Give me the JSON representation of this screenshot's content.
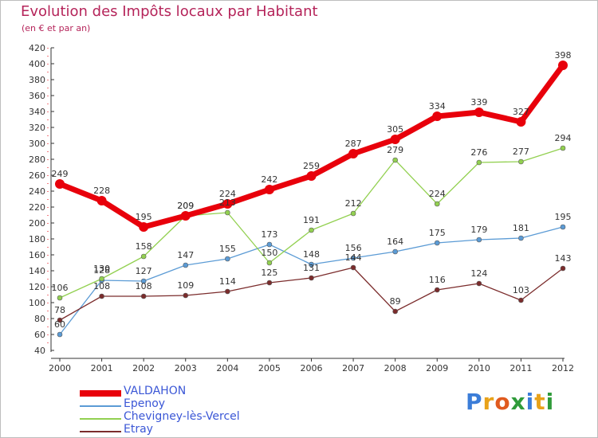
{
  "title": "Evolution des Impôts locaux par Habitant",
  "subtitle": "(en € et par an)",
  "brand": {
    "text": "Proxiti",
    "letter_colors": [
      "#3b7dd8",
      "#e8a21a",
      "#e05a1e",
      "#2f9b3a",
      "#3b7dd8",
      "#e8a21a",
      "#2f9b3a"
    ]
  },
  "chart_data": {
    "type": "line",
    "title": "Evolution des Impôts locaux par Habitant",
    "subtitle": "(en € et par an)",
    "x": [
      "2000",
      "2001",
      "2002",
      "2003",
      "2004",
      "2005",
      "2006",
      "2007",
      "2008",
      "2009",
      "2010",
      "2011",
      "2012"
    ],
    "y_ticks": [
      40,
      60,
      80,
      100,
      120,
      140,
      160,
      180,
      200,
      220,
      240,
      260,
      280,
      300,
      320,
      340,
      360,
      380,
      400,
      420
    ],
    "ylim": [
      40,
      420
    ],
    "grid": false,
    "legend_position": "bottom-left",
    "series": [
      {
        "name": "VALDAHON",
        "color": "#e8000b",
        "values": [
          249,
          228,
          195,
          209,
          224,
          242,
          259,
          287,
          305,
          334,
          339,
          327,
          398
        ]
      },
      {
        "name": "Epenoy",
        "color": "#5b9bd5",
        "values": [
          60,
          128,
          127,
          147,
          155,
          173,
          148,
          156,
          164,
          175,
          179,
          181,
          195
        ]
      },
      {
        "name": "Chevigney-lès-Vercel",
        "color": "#92d050",
        "values": [
          106,
          130,
          158,
          209,
          213,
          150,
          191,
          212,
          279,
          224,
          276,
          277,
          294
        ]
      },
      {
        "name": "Etray",
        "color": "#7b2c2c",
        "values": [
          78,
          108,
          108,
          109,
          114,
          125,
          131,
          144,
          89,
          116,
          124,
          103,
          143
        ]
      }
    ]
  }
}
